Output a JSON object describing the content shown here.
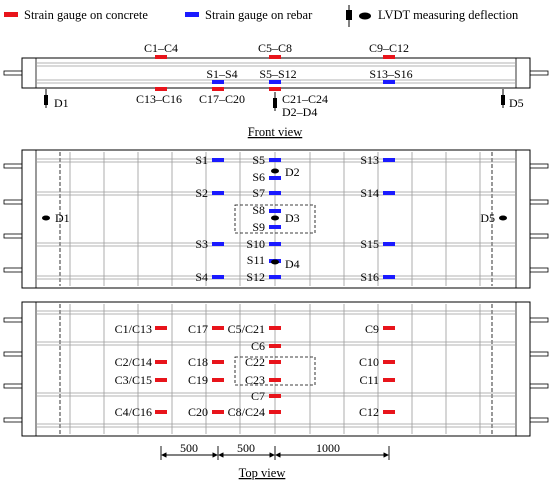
{
  "legend": {
    "concrete_label": "Strain gauge on concrete",
    "rebar_label": "Strain gauge on rebar",
    "lvdt_label": "LVDT measuring deflection"
  },
  "colors": {
    "concrete": "#e8141b",
    "rebar": "#1a1aff",
    "line": "#000000",
    "grid": "#9a9a9a"
  },
  "front_view": {
    "title": "Front view",
    "labels": {
      "c1_c4": "C1–C4",
      "c5_c8": "C5–C8",
      "c9_c12": "C9–C12",
      "c13_c16": "C13–C16",
      "c17_c20": "C17–C20",
      "c21_c24": "C21–C24",
      "s1_s4": "S1–S4",
      "s5_s12": "S5–S12",
      "s13_s16": "S13–S16",
      "d1": "D1",
      "d2_d4": "D2–D4",
      "d5": "D5"
    }
  },
  "top_view": {
    "title": "Top view",
    "rebar_labels": {
      "s1": "S1",
      "s2": "S2",
      "s3": "S3",
      "s4": "S4",
      "s5": "S5",
      "s6": "S6",
      "s7": "S7",
      "s8": "S8",
      "s9": "S9",
      "s10": "S10",
      "s11": "S11",
      "s12": "S12",
      "s13": "S13",
      "s14": "S14",
      "s15": "S15",
      "s16": "S16"
    },
    "lvdt_labels": {
      "d1": "D1",
      "d2": "D2",
      "d3": "D3",
      "d4": "D4",
      "d5": "D5"
    },
    "concrete_labels": {
      "c1_c13": "C1/C13",
      "c2_c14": "C2/C14",
      "c3_c15": "C3/C15",
      "c4_c16": "C4/C16",
      "c17": "C17",
      "c18": "C18",
      "c19": "C19",
      "c20": "C20",
      "c5_c21": "C5/C21",
      "c6": "C6",
      "c22": "C22",
      "c23": "C23",
      "c7": "C7",
      "c8_c24": "C8/C24",
      "c9": "C9",
      "c10": "C10",
      "c11": "C11",
      "c12": "C12"
    },
    "dimensions": {
      "d1": "500",
      "d2": "500",
      "d3": "1000"
    }
  }
}
